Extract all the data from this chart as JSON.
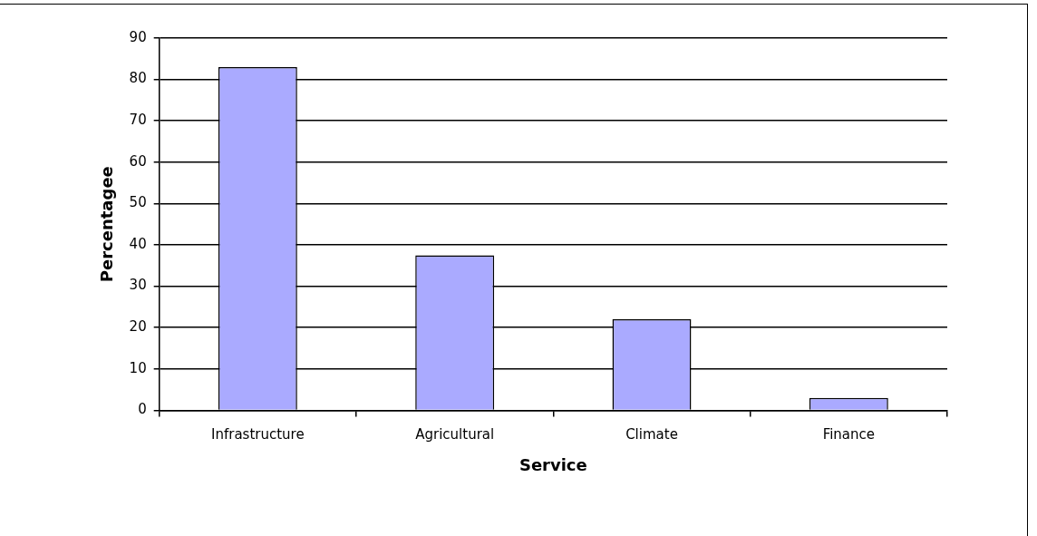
{
  "chart_data": {
    "type": "bar",
    "xlabel": "Service",
    "ylabel": "Percentagee",
    "categories": [
      "Infrastructure",
      "Agricultural",
      "Climate",
      "Finance"
    ],
    "values": [
      83,
      37.5,
      22,
      3
    ],
    "color": "#aaaaff",
    "ylim": [
      0,
      90
    ],
    "yticks": [
      0,
      10,
      20,
      30,
      40,
      50,
      60,
      70,
      80,
      90
    ],
    "grid": "y",
    "legend": false
  }
}
